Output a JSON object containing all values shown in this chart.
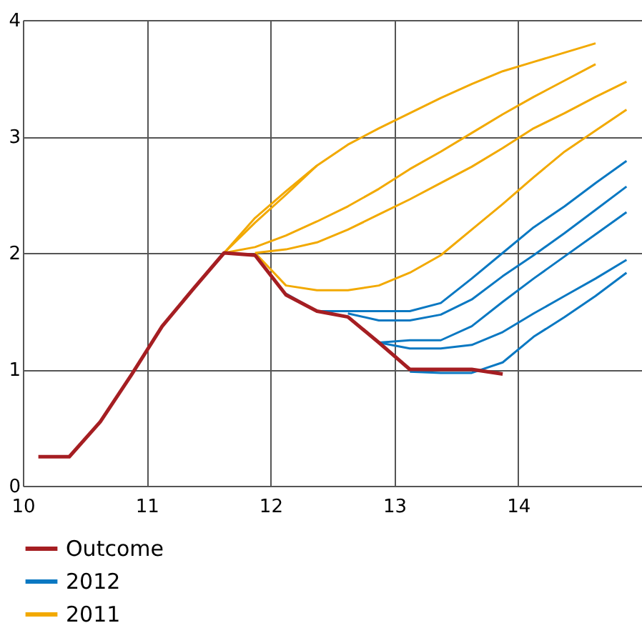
{
  "chart_data": {
    "type": "line",
    "xlim": [
      10,
      15
    ],
    "xticks": [
      10,
      11,
      12,
      13,
      14
    ],
    "ylim": [
      0,
      4
    ],
    "yticks": [
      0,
      1,
      2,
      3,
      4
    ],
    "grid": true,
    "legend": "bottom",
    "series": [
      {
        "name": "Outcome",
        "color": "#a51e22",
        "x": [
          10.125,
          10.375,
          10.625,
          10.875,
          11.125,
          11.375,
          11.625,
          11.875,
          12.125,
          12.375,
          12.625,
          12.875,
          13.125,
          13.375,
          13.625,
          13.875
        ],
        "values": [
          0.25,
          0.25,
          0.55,
          0.95,
          1.37,
          1.69,
          2.0,
          1.98,
          1.64,
          1.5,
          1.45,
          1.23,
          1.0,
          1.0,
          1.0,
          0.96
        ]
      },
      {
        "name": "2012",
        "color": "#0a78c2",
        "x": [
          12.125,
          12.375,
          12.625,
          12.875,
          13.125,
          13.375,
          13.625,
          13.875,
          14.125,
          14.375,
          14.625,
          14.875
        ],
        "values": [
          1.65,
          1.5,
          1.5,
          1.5,
          1.5,
          1.57,
          1.78,
          2.0,
          2.22,
          2.4,
          2.6,
          2.79
        ]
      },
      {
        "color": "#0a78c2",
        "x": [
          12.625,
          12.875,
          13.125,
          13.375,
          13.625,
          13.875,
          14.125,
          14.375,
          14.625,
          14.875
        ],
        "values": [
          1.48,
          1.42,
          1.42,
          1.47,
          1.6,
          1.8,
          1.98,
          2.17,
          2.37,
          2.57
        ]
      },
      {
        "color": "#0a78c2",
        "x": [
          12.875,
          13.125,
          13.375,
          13.625,
          13.875,
          14.125,
          14.375,
          14.625,
          14.875
        ],
        "values": [
          1.23,
          1.25,
          1.25,
          1.37,
          1.58,
          1.78,
          1.97,
          2.16,
          2.35
        ]
      },
      {
        "color": "#0a78c2",
        "x": [
          12.875,
          13.125,
          13.375,
          13.625,
          13.875,
          14.125,
          14.375,
          14.625,
          14.875
        ],
        "values": [
          1.23,
          1.18,
          1.18,
          1.21,
          1.32,
          1.48,
          1.63,
          1.78,
          1.94
        ]
      },
      {
        "color": "#0a78c2",
        "x": [
          13.125,
          13.375,
          13.625,
          13.875,
          14.125,
          14.375,
          14.625,
          14.875
        ],
        "values": [
          0.98,
          0.97,
          0.97,
          1.06,
          1.28,
          1.45,
          1.63,
          1.83
        ]
      },
      {
        "name": "2011",
        "color": "#f2a900",
        "x": [
          11.625,
          11.875,
          12.125,
          12.375,
          12.625,
          12.875,
          13.125,
          13.375,
          13.625,
          13.875,
          14.125,
          14.375,
          14.625
        ],
        "values": [
          2.0,
          2.3,
          2.53,
          2.75,
          2.93,
          3.07,
          3.2,
          3.33,
          3.45,
          3.56,
          3.64,
          3.72,
          3.8
        ]
      },
      {
        "color": "#f2a900",
        "x": [
          11.625,
          11.875,
          12.125,
          12.375
        ],
        "values": [
          2.0,
          2.26,
          2.5,
          2.75
        ]
      },
      {
        "color": "#f2a900",
        "x": [
          11.625,
          11.875,
          12.125,
          12.375,
          12.625,
          12.875,
          13.125,
          13.375,
          13.625,
          13.875,
          14.125,
          14.375,
          14.625
        ],
        "values": [
          2.0,
          2.05,
          2.15,
          2.27,
          2.4,
          2.55,
          2.72,
          2.87,
          3.03,
          3.19,
          3.34,
          3.48,
          3.62
        ]
      },
      {
        "color": "#f2a900",
        "x": [
          11.875,
          12.125,
          12.375,
          12.625,
          12.875,
          13.125,
          13.375,
          13.625,
          13.875,
          14.125,
          14.375,
          14.625,
          14.875
        ],
        "values": [
          2.0,
          2.03,
          2.09,
          2.2,
          2.33,
          2.46,
          2.6,
          2.74,
          2.9,
          3.07,
          3.2,
          3.34,
          3.47
        ]
      },
      {
        "color": "#f2a900",
        "x": [
          11.875,
          12.125,
          12.375,
          12.625,
          12.875,
          13.125,
          13.375,
          13.625,
          13.875,
          14.125,
          14.375,
          14.625,
          14.875
        ],
        "values": [
          2.0,
          1.72,
          1.68,
          1.68,
          1.72,
          1.83,
          1.98,
          2.2,
          2.42,
          2.65,
          2.87,
          3.05,
          3.23
        ]
      }
    ]
  }
}
